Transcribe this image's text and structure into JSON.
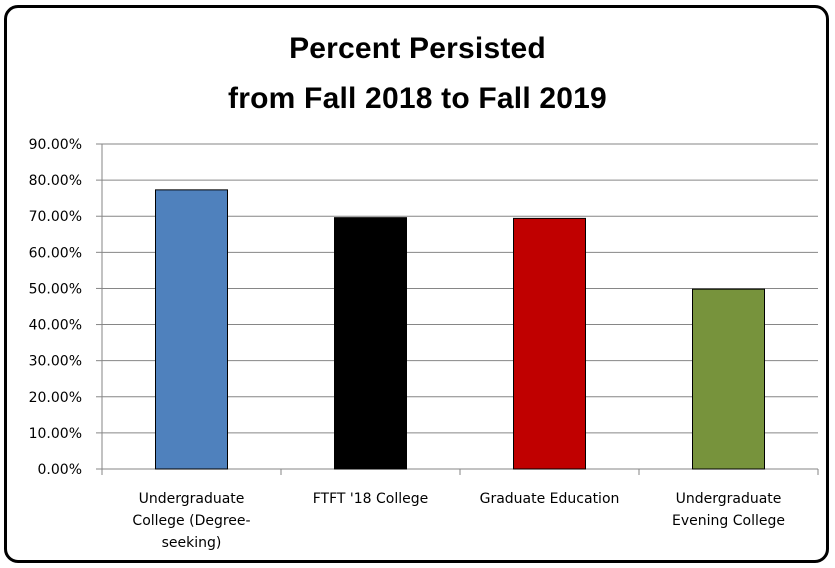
{
  "chart_data": {
    "type": "bar",
    "title_lines": [
      "Percent Persisted",
      "from Fall 2018 to Fall 2019"
    ],
    "categories": [
      [
        "Undergraduate",
        "College (Degree-",
        "seeking)"
      ],
      [
        "FTFT '18 College"
      ],
      [
        "Graduate Education"
      ],
      [
        "Undergraduate",
        "Evening College"
      ]
    ],
    "values": [
      77.3,
      69.6,
      69.4,
      49.8
    ],
    "colors": [
      "#4f81bd",
      "#000000",
      "#c00000",
      "#77933c"
    ],
    "ylim": [
      0,
      90
    ],
    "yticks": [
      0,
      10,
      20,
      30,
      40,
      50,
      60,
      70,
      80,
      90
    ],
    "ytick_labels": [
      "0.00%",
      "10.00%",
      "20.00%",
      "30.00%",
      "40.00%",
      "50.00%",
      "60.00%",
      "70.00%",
      "80.00%",
      "90.00%"
    ],
    "grid": true,
    "xlabel": "",
    "ylabel": ""
  }
}
